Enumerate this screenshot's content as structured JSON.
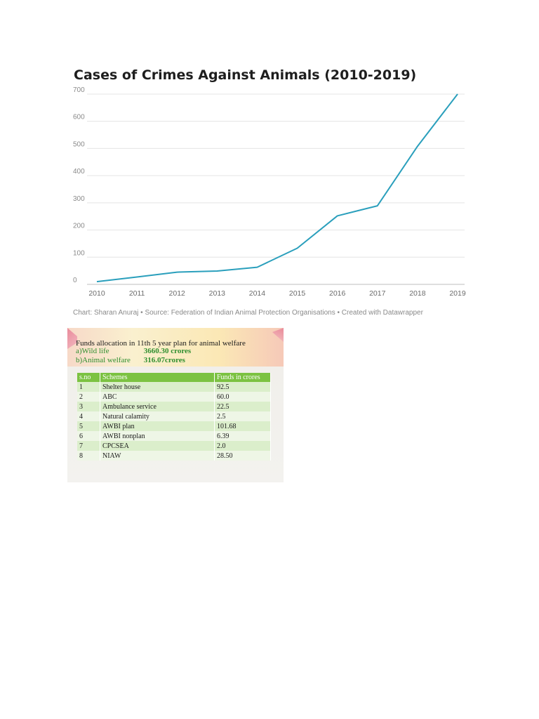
{
  "chart_data": {
    "type": "line",
    "title": "Cases of Crimes Against Animals (2010-2019)",
    "x": [
      "2010",
      "2011",
      "2012",
      "2013",
      "2014",
      "2015",
      "2016",
      "2017",
      "2018",
      "2019"
    ],
    "series": [
      {
        "values": [
          10,
          27,
          45,
          49,
          63,
          133,
          252,
          289,
          508,
          700
        ]
      }
    ],
    "yticks": [
      0,
      100,
      200,
      300,
      400,
      500,
      600,
      700
    ],
    "ylim": [
      0,
      700
    ],
    "grid": true,
    "line_color": "#2a9fbc",
    "credit": "Chart: Sharan Anuraj • Source: Federation of Indian Animal Protection Organisations • Created with Datawrapper"
  },
  "funds": {
    "title": "Funds allocation in 11th 5 year plan for animal welfare",
    "allocations": [
      {
        "name": "a)Wild life",
        "amount": "3660.30 crores"
      },
      {
        "name": "b)Animal welfare",
        "amount": "316.07crores"
      }
    ],
    "headers": {
      "sno": "s.no",
      "scheme": "Schemes",
      "funds": "Funds in crores"
    },
    "rows": [
      {
        "sno": "1",
        "scheme": "Shelter house",
        "funds": "92.5"
      },
      {
        "sno": "2",
        "scheme": "ABC",
        "funds": "60.0"
      },
      {
        "sno": "3",
        "scheme": "Ambulance service",
        "funds": "22.5"
      },
      {
        "sno": "4",
        "scheme": "Natural calamity",
        "funds": "2.5"
      },
      {
        "sno": "5",
        "scheme": "AWBI plan",
        "funds": "101.68"
      },
      {
        "sno": "6",
        "scheme": "AWBI nonplan",
        "funds": "6.39"
      },
      {
        "sno": "7",
        "scheme": "CPCSEA",
        "funds": "2.0"
      },
      {
        "sno": "8",
        "scheme": "NIAW",
        "funds": "28.50"
      }
    ],
    "header_color": "#7cc242",
    "allocation_color": "#2f8f2f"
  }
}
